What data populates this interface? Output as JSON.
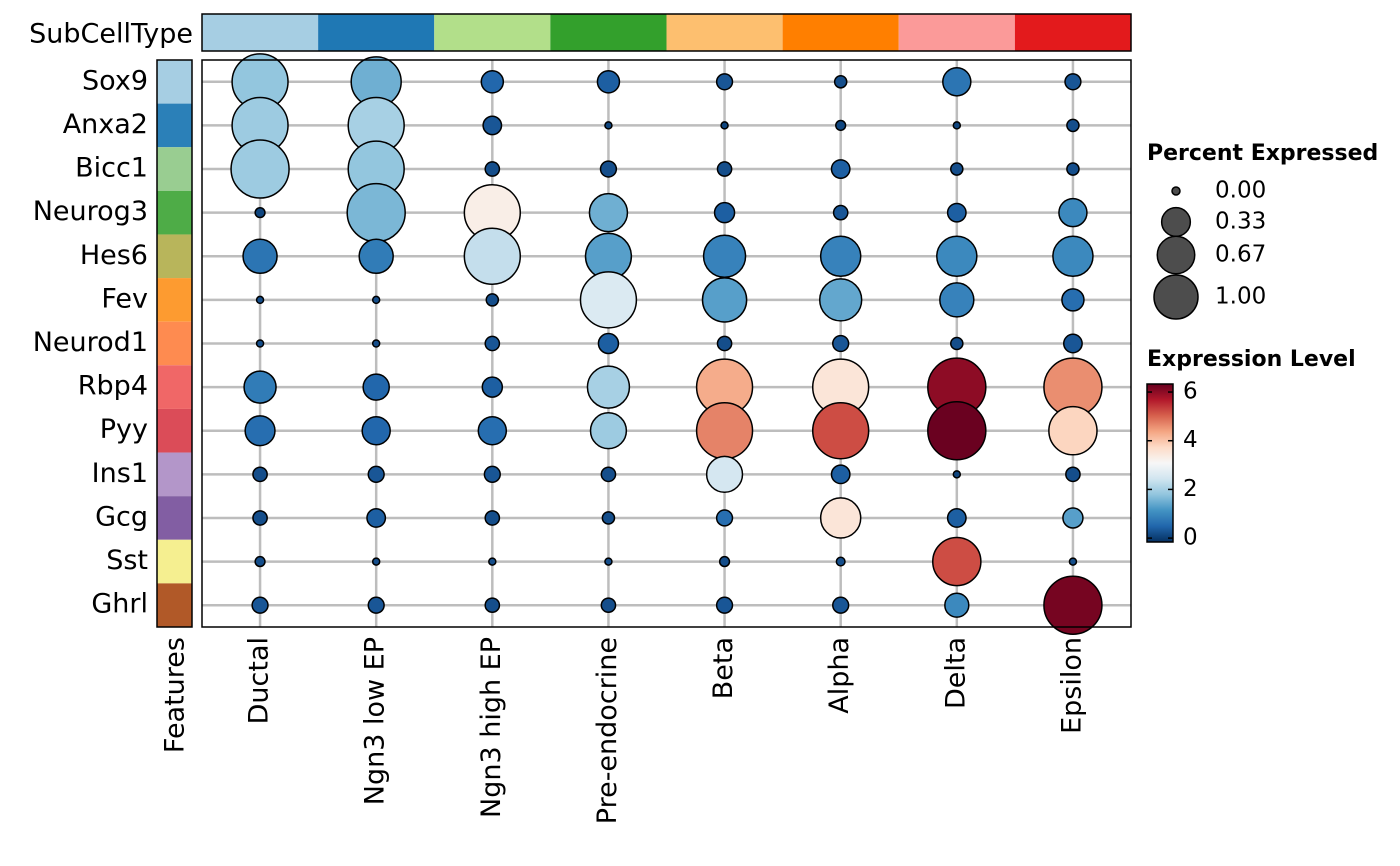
{
  "chart_data": {
    "type": "dotplot",
    "x_annotation_title": "SubCellType",
    "y_annotation_title": "Features",
    "categories": [
      "Ductal",
      "Ngn3 low EP",
      "Ngn3 high EP",
      "Pre-endocrine",
      "Beta",
      "Alpha",
      "Delta",
      "Epsilon"
    ],
    "category_colors": [
      "#a6cee3",
      "#1f78b4",
      "#b2df8a",
      "#33a02c",
      "#fdbf6f",
      "#ff7f00",
      "#fb9a99",
      "#e31a1c"
    ],
    "features": [
      "Sox9",
      "Anxa2",
      "Bicc1",
      "Neurog3",
      "Hes6",
      "Fev",
      "Neurod1",
      "Rbp4",
      "Pyy",
      "Ins1",
      "Gcg",
      "Sst",
      "Ghrl"
    ],
    "feature_colors": [
      "#a6cee3",
      "#2b80b8",
      "#99cd91",
      "#4eac47",
      "#b8b55b",
      "#fd9b30",
      "#fe8b50",
      "#f06767",
      "#db4c58",
      "#b396c9",
      "#825ea3",
      "#f5ef90",
      "#b15928"
    ],
    "percent_title": "Percent Expressed",
    "percent_ticks": [
      {
        "value": 0,
        "label": "0.00"
      },
      {
        "value": 0.33,
        "label": "0.33"
      },
      {
        "value": 0.67,
        "label": "0.67"
      },
      {
        "value": 1,
        "label": "1.00"
      }
    ],
    "percent": [
      [
        0.92,
        0.71,
        0.087,
        0.087,
        0.03,
        0.01,
        0.17,
        0.03
      ],
      [
        0.92,
        0.92,
        0.05,
        0.0,
        0.0,
        0.003,
        0.0,
        0.01
      ],
      [
        1.0,
        0.92,
        0.02,
        0.03,
        0.02,
        0.05,
        0.01,
        0.01
      ],
      [
        0.003,
        1.0,
        0.92,
        0.37,
        0.065,
        0.02,
        0.05,
        0.17
      ],
      [
        0.28,
        0.28,
        0.92,
        0.58,
        0.47,
        0.42,
        0.42,
        0.42
      ],
      [
        0.0,
        0.0,
        0.01,
        0.92,
        0.53,
        0.47,
        0.28,
        0.087
      ],
      [
        0.0,
        0.0,
        0.02,
        0.065,
        0.02,
        0.03,
        0.01,
        0.05
      ],
      [
        0.24,
        0.14,
        0.065,
        0.47,
        0.92,
        0.92,
        1.0,
        1.0
      ],
      [
        0.2,
        0.17,
        0.17,
        0.32,
        0.92,
        0.92,
        1.0,
        0.65
      ],
      [
        0.02,
        0.03,
        0.03,
        0.02,
        0.32,
        0.05,
        0.0,
        0.02
      ],
      [
        0.02,
        0.05,
        0.02,
        0.01,
        0.03,
        0.42,
        0.05,
        0.065
      ],
      [
        0.003,
        0.0,
        0.0,
        0.0,
        0.003,
        0.001,
        0.65,
        0.0
      ],
      [
        0.03,
        0.03,
        0.02,
        0.02,
        0.03,
        0.03,
        0.11,
        1.0
      ]
    ],
    "expression_title": "Expression Level",
    "clim": [
      -0.16,
      6.33
    ],
    "cticks": [
      0,
      2,
      4,
      6
    ],
    "colormap": [
      "#053061",
      "#2166ac",
      "#4393c3",
      "#92c5de",
      "#d1e5f0",
      "#f7f7f7",
      "#fddbc7",
      "#f4a582",
      "#d6604d",
      "#b2182b",
      "#67001f"
    ],
    "expression": [
      [
        1.8,
        1.5,
        0.5,
        0.4,
        0.3,
        0.2,
        0.7,
        0.3
      ],
      [
        1.9,
        2.0,
        0.3,
        0.1,
        0.1,
        0.1,
        0.1,
        0.2
      ],
      [
        1.9,
        1.8,
        0.2,
        0.2,
        0.2,
        0.4,
        0.2,
        0.2
      ],
      [
        0.1,
        1.6,
        3.3,
        1.5,
        0.4,
        0.3,
        0.4,
        1.0
      ],
      [
        0.7,
        0.8,
        2.3,
        1.3,
        0.9,
        0.9,
        1.0,
        1.0
      ],
      [
        0.2,
        0.2,
        0.2,
        2.6,
        1.3,
        1.4,
        0.9,
        0.6
      ],
      [
        0.2,
        0.2,
        0.3,
        0.4,
        0.2,
        0.3,
        0.2,
        0.3
      ],
      [
        0.8,
        0.5,
        0.4,
        2.0,
        4.3,
        3.5,
        6.0,
        4.6
      ],
      [
        0.6,
        0.5,
        0.6,
        1.9,
        4.7,
        5.2,
        6.3,
        3.8
      ],
      [
        0.2,
        0.3,
        0.3,
        0.2,
        2.5,
        0.4,
        0.1,
        0.2
      ],
      [
        0.2,
        0.4,
        0.2,
        0.2,
        0.6,
        3.5,
        0.4,
        1.3
      ],
      [
        0.2,
        0.2,
        0.2,
        0.2,
        0.2,
        0.2,
        5.2,
        0.2
      ],
      [
        0.3,
        0.3,
        0.2,
        0.2,
        0.3,
        0.3,
        1.0,
        6.2
      ]
    ]
  }
}
